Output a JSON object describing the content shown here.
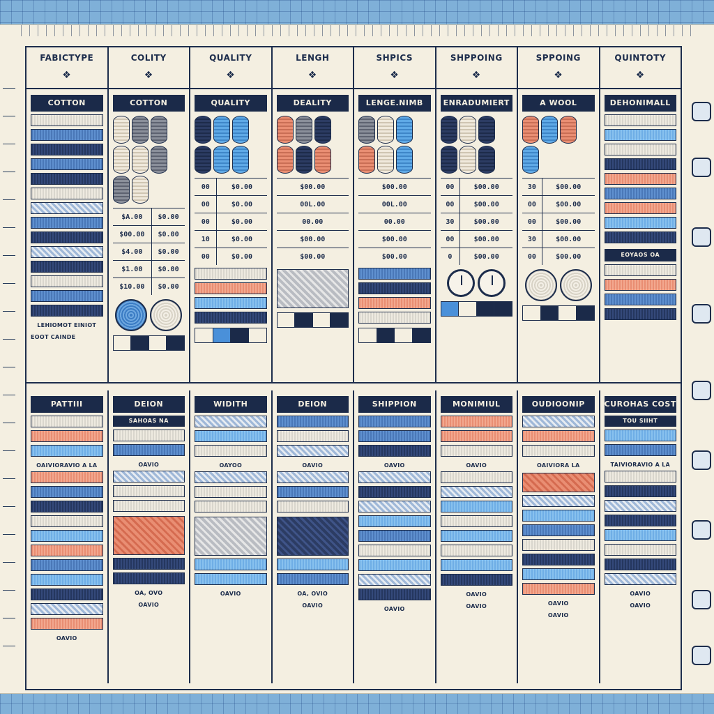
{
  "header": {
    "columns": [
      "FABICTYPE",
      "COLITY",
      "QUALITY",
      "LENGH",
      "SHPICS",
      "SHPPOING",
      "SPPOING",
      "QUINTOTY"
    ]
  },
  "section_top": {
    "titles": [
      "COTTON",
      "COTTON",
      "QUALITY",
      "DEALITY",
      "LENGE.NIMB",
      "ENRADUMIERT",
      "A WOOL",
      "DEHONIMALL"
    ],
    "prices_a": [
      [
        "$A.00",
        "$0.00"
      ],
      [
        "$00.00",
        "$0.00"
      ],
      [
        "$4.00",
        "$0.00"
      ],
      [
        "$1.00",
        "$0.00"
      ],
      [
        "$10.00",
        "$0.00"
      ]
    ],
    "prices_b": [
      [
        "00",
        "$0.00"
      ],
      [
        "00",
        "$0.00"
      ],
      [
        "00",
        "$0.00"
      ],
      [
        "10",
        "$0.00"
      ],
      [
        "00",
        "$0.00"
      ]
    ],
    "prices_c": [
      "$00.00",
      "00L.00",
      "00.00",
      "$00.00",
      "$00.00"
    ],
    "prices_d": [
      [
        "00",
        "$00.00"
      ],
      [
        "00",
        "$00.00"
      ],
      [
        "30",
        "$00.00"
      ],
      [
        "00",
        "$00.00"
      ],
      [
        "0",
        "$00.00"
      ]
    ],
    "prices_e": [
      [
        "30",
        "$00.00"
      ],
      [
        "00",
        "$00.00"
      ],
      [
        "00",
        "$00.00"
      ],
      [
        "30",
        "$00.00"
      ],
      [
        "00",
        "$00.00"
      ]
    ],
    "col1_footer": "LEHIOMOT EINIOT",
    "col1_extra": "EOOT CAINDE",
    "label_right": "EOYAOS OA"
  },
  "section_bottom": {
    "titles": [
      "PATTIII",
      "DEION",
      "WIDITH",
      "DEION",
      "SHIPPION",
      "MONIMIUL",
      "OUDIOONIP",
      "CUROHAS COST"
    ],
    "sub_labels": [
      "",
      "SAHOAS NA",
      "",
      "",
      "",
      "",
      "",
      "TOU SIIHT"
    ],
    "mid_labels": [
      "OAIVIORAVIO A LA",
      "OAVIO",
      "OAYOO",
      "OAVIO",
      "OAVIO",
      "OAVIO",
      "OAIVIORA LA",
      "TAIVIORAVIO A LA"
    ],
    "price_labels": [
      "",
      "OA, OVO",
      "",
      "OA, OVIO",
      "",
      "OAVIO",
      "OAVIO",
      "OAVIO"
    ],
    "footers": [
      "OAVIO",
      "OAVIO",
      "OAVIO",
      "OAVIO",
      "OAVIO",
      "OAVIO",
      "OAVIO",
      "OAVIO"
    ]
  }
}
